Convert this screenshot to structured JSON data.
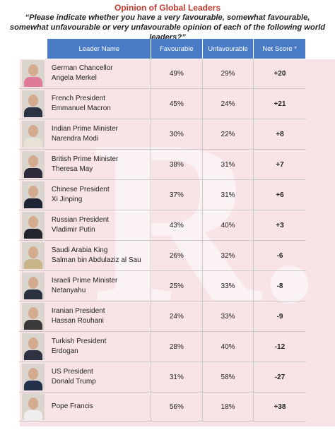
{
  "title": "Opinion of Global Leaders",
  "subtitle": "“Please indicate whether you have a very favourable, somewhat favourable, somewhat unfavourable or very unfavourable opinion of each of the following world leaders?”",
  "watermark": "R.",
  "headers": {
    "leader": "Leader Name",
    "favourable": "Favourable",
    "unfavourable": "Unfavourable",
    "net": "Net Score *"
  },
  "leaders": [
    {
      "role": "German Chancellor",
      "name": "Angela Merkel",
      "favourable": "49%",
      "unfavourable": "29%",
      "net": "+20"
    },
    {
      "role": "French President",
      "name": "Emmanuel Macron",
      "favourable": "45%",
      "unfavourable": "24%",
      "net": "+21"
    },
    {
      "role": "Indian Prime Minister",
      "name": "Narendra Modi",
      "favourable": "30%",
      "unfavourable": "22%",
      "net": "+8"
    },
    {
      "role": "British Prime Minister",
      "name": "Theresa May",
      "favourable": "38%",
      "unfavourable": "31%",
      "net": "+7"
    },
    {
      "role": "Chinese President",
      "name": "Xi Jinping",
      "favourable": "37%",
      "unfavourable": "31%",
      "net": "+6"
    },
    {
      "role": "Russian President",
      "name": "Vladimir Putin",
      "favourable": "43%",
      "unfavourable": "40%",
      "net": "+3"
    },
    {
      "role": "Saudi Arabia King",
      "name": "Salman bin Abdulaziz al Sau",
      "favourable": "26%",
      "unfavourable": "32%",
      "net": "-6"
    },
    {
      "role": "Israeli Prime Minister",
      "name": "Netanyahu",
      "favourable": "25%",
      "unfavourable": "33%",
      "net": "-8"
    },
    {
      "role": "Iranian President",
      "name": "Hassan Rouhani",
      "favourable": "24%",
      "unfavourable": "33%",
      "net": "-9"
    },
    {
      "role": "Turkish President",
      "name": "Erdogan",
      "favourable": "28%",
      "unfavourable": "40%",
      "net": "-12"
    },
    {
      "role": "US President",
      "name": "Donald Trump",
      "favourable": "31%",
      "unfavourable": "58%",
      "net": "-27"
    },
    {
      "role": "",
      "name": "Pope Francis",
      "favourable": "56%",
      "unfavourable": "18%",
      "net": "+38"
    }
  ],
  "photo_colors": [
    "#e07a9a",
    "#2b3242",
    "#e8e2d6",
    "#2c2c3a",
    "#1e2433",
    "#23262e",
    "#c9b58a",
    "#2a3240",
    "#3a3a3a",
    "#2d3140",
    "#23324a",
    "#efefef"
  ]
}
